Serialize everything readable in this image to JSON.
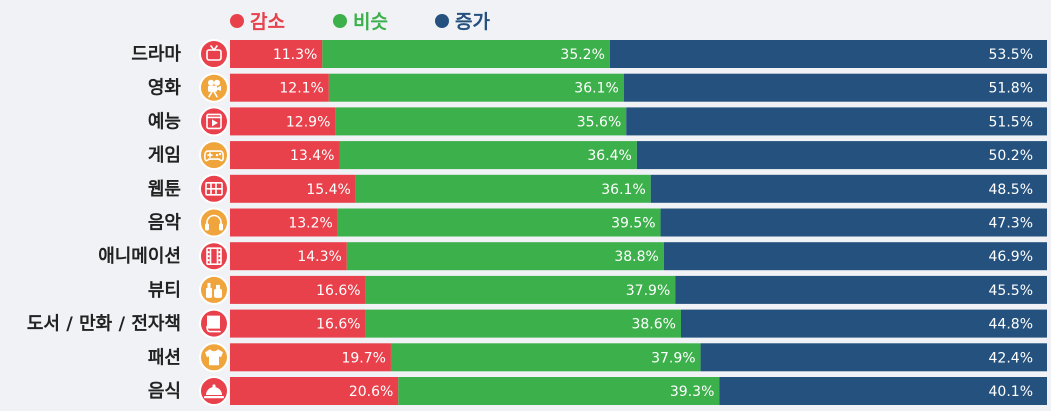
{
  "chart_data": {
    "type": "bar",
    "stacked": true,
    "orientation": "horizontal",
    "title": "",
    "xlabel": "",
    "ylabel": "",
    "legend_position": "top-left",
    "xlim": [
      0,
      100
    ],
    "categories": [
      "드라마",
      "영화",
      "예능",
      "게임",
      "웹툰",
      "음악",
      "애니메이션",
      "뷰티",
      "도서 / 만화 / 전자책",
      "패션",
      "음식"
    ],
    "icons": [
      "tv-icon",
      "movie-camera-icon",
      "video-play-icon",
      "gamepad-icon",
      "webtoon-icon",
      "headphones-icon",
      "film-strip-icon",
      "cosmetics-icon",
      "book-icon",
      "shirt-icon",
      "food-cloche-icon"
    ],
    "series": [
      {
        "name": "감소",
        "color": "#e8414c",
        "values": [
          11.3,
          12.1,
          12.9,
          13.4,
          15.4,
          13.2,
          14.3,
          16.6,
          16.6,
          19.7,
          20.6
        ]
      },
      {
        "name": "비슷",
        "color": "#3cb04b",
        "values": [
          35.2,
          36.1,
          35.6,
          36.4,
          36.1,
          39.5,
          38.8,
          37.9,
          38.6,
          37.9,
          39.3
        ]
      },
      {
        "name": "증가",
        "color": "#24517e",
        "values": [
          53.5,
          51.8,
          51.5,
          50.2,
          48.5,
          47.3,
          46.9,
          45.5,
          44.8,
          42.4,
          40.1
        ]
      }
    ],
    "value_labels": [
      [
        "11.3%",
        "35.2%",
        "53.5%"
      ],
      [
        "12.1%",
        "36.1%",
        "51.8%"
      ],
      [
        "12.9%",
        "35.6%",
        "51.5%"
      ],
      [
        "13.4%",
        "36.4%",
        "50.2%"
      ],
      [
        "15.4%",
        "36.1%",
        "48.5%"
      ],
      [
        "13.2%",
        "39.5%",
        "47.3%"
      ],
      [
        "14.3%",
        "38.8%",
        "46.9%"
      ],
      [
        "16.6%",
        "37.9%",
        "45.5%"
      ],
      [
        "16.6%",
        "38.6%",
        "44.8%"
      ],
      [
        "19.7%",
        "37.9%",
        "42.4%"
      ],
      [
        "20.6%",
        "39.3%",
        "40.1%"
      ]
    ],
    "icon_circle_colors": [
      "#e8414c",
      "#f0a43c"
    ]
  }
}
